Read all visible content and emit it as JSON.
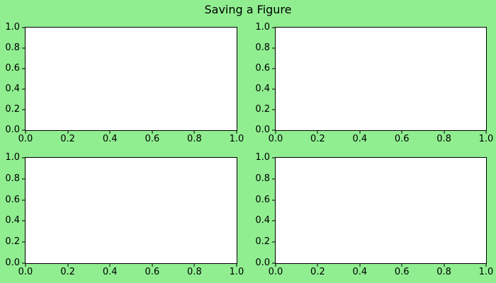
{
  "figure": {
    "title": "Saving a Figure",
    "background_color": "#90EE90",
    "axes_background_color": "#FFFFFF",
    "spine_color": "#000000",
    "text_color": "#000000"
  },
  "chart_data": [
    {
      "type": "line",
      "position": "top-left",
      "series": [],
      "xlim": [
        0.0,
        1.0
      ],
      "ylim": [
        0.0,
        1.0
      ],
      "xticks": [
        0.0,
        0.2,
        0.4,
        0.6,
        0.8,
        1.0
      ],
      "yticks": [
        0.0,
        0.2,
        0.4,
        0.6,
        0.8,
        1.0
      ],
      "xtick_labels": [
        "0.0",
        "0.2",
        "0.4",
        "0.6",
        "0.8",
        "1.0"
      ],
      "ytick_labels": [
        "0.0",
        "0.2",
        "0.4",
        "0.6",
        "0.8",
        "1.0"
      ],
      "grid": false,
      "legend": false
    },
    {
      "type": "line",
      "position": "top-right",
      "series": [],
      "xlim": [
        0.0,
        1.0
      ],
      "ylim": [
        0.0,
        1.0
      ],
      "xticks": [
        0.0,
        0.2,
        0.4,
        0.6,
        0.8,
        1.0
      ],
      "yticks": [
        0.0,
        0.2,
        0.4,
        0.6,
        0.8,
        1.0
      ],
      "xtick_labels": [
        "0.0",
        "0.2",
        "0.4",
        "0.6",
        "0.8",
        "1.0"
      ],
      "ytick_labels": [
        "0.0",
        "0.2",
        "0.4",
        "0.6",
        "0.8",
        "1.0"
      ],
      "grid": false,
      "legend": false
    },
    {
      "type": "line",
      "position": "bottom-left",
      "series": [],
      "xlim": [
        0.0,
        1.0
      ],
      "ylim": [
        0.0,
        1.0
      ],
      "xticks": [
        0.0,
        0.2,
        0.4,
        0.6,
        0.8,
        1.0
      ],
      "yticks": [
        0.0,
        0.2,
        0.4,
        0.6,
        0.8,
        1.0
      ],
      "xtick_labels": [
        "0.0",
        "0.2",
        "0.4",
        "0.6",
        "0.8",
        "1.0"
      ],
      "ytick_labels": [
        "0.0",
        "0.2",
        "0.4",
        "0.6",
        "0.8",
        "1.0"
      ],
      "grid": false,
      "legend": false
    },
    {
      "type": "line",
      "position": "bottom-right",
      "series": [],
      "xlim": [
        0.0,
        1.0
      ],
      "ylim": [
        0.0,
        1.0
      ],
      "xticks": [
        0.0,
        0.2,
        0.4,
        0.6,
        0.8,
        1.0
      ],
      "yticks": [
        0.0,
        0.2,
        0.4,
        0.6,
        0.8,
        1.0
      ],
      "xtick_labels": [
        "0.0",
        "0.2",
        "0.4",
        "0.6",
        "0.8",
        "1.0"
      ],
      "ytick_labels": [
        "0.0",
        "0.2",
        "0.4",
        "0.6",
        "0.8",
        "1.0"
      ],
      "grid": false,
      "legend": false
    }
  ]
}
